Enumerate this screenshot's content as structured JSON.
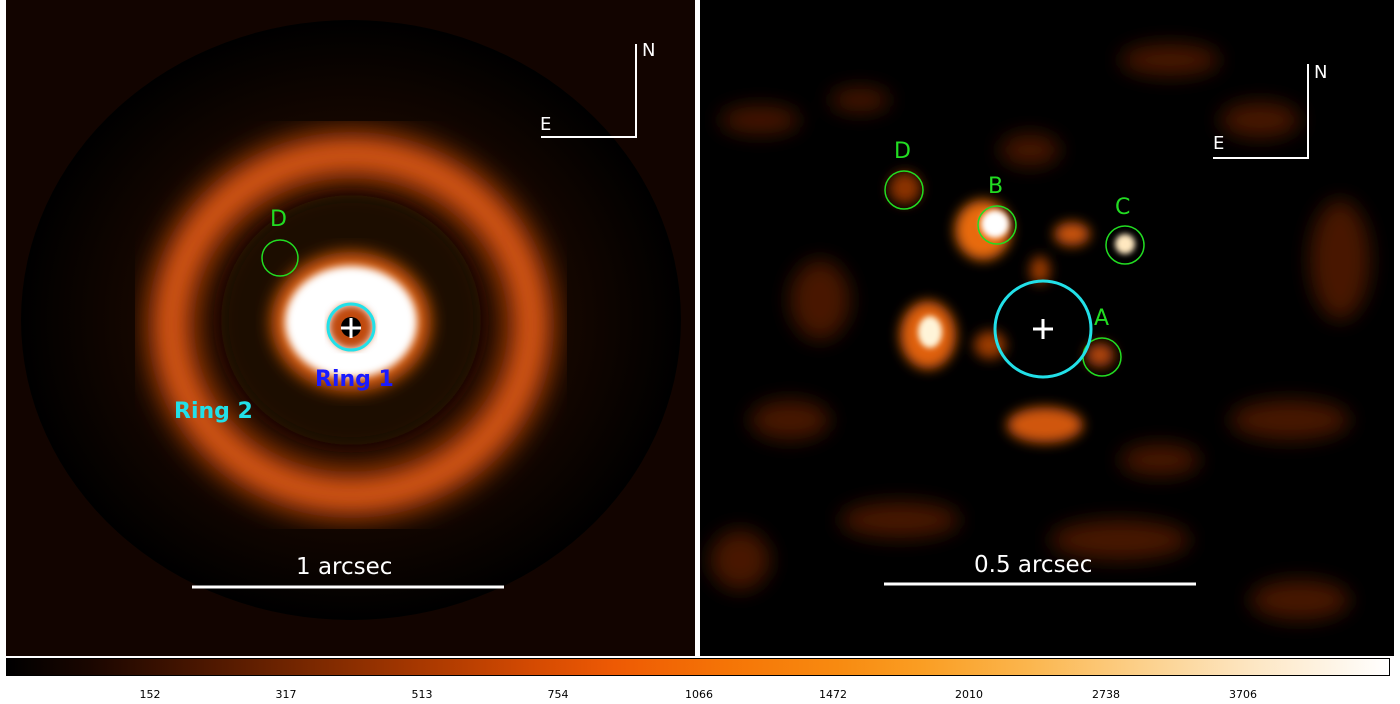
{
  "panels": {
    "left": {
      "compass": {
        "north": "N",
        "east": "E"
      },
      "scalebar_label": "1 arcsec",
      "markers": {
        "d": "D",
        "cross": "+"
      },
      "rings": {
        "ring1": "Ring 1",
        "ring2": "Ring 2"
      }
    },
    "right": {
      "compass": {
        "north": "N",
        "east": "E"
      },
      "scalebar_label": "0.5 arcsec",
      "markers": {
        "a": "A",
        "b": "B",
        "c": "C",
        "d": "D",
        "cross": "+"
      }
    }
  },
  "colorbar": {
    "ticks": [
      "152",
      "317",
      "513",
      "754",
      "1066",
      "1472",
      "2010",
      "2738",
      "3706"
    ],
    "colors": {
      "low": "#000000",
      "mid": "#f57406",
      "high": "#ffffff"
    }
  },
  "colors": {
    "marker_green": "#22dd22",
    "ring_cyan": "#22e0e8",
    "ring1_label": "#1a1aff",
    "ring2_label": "#22e0e8"
  }
}
